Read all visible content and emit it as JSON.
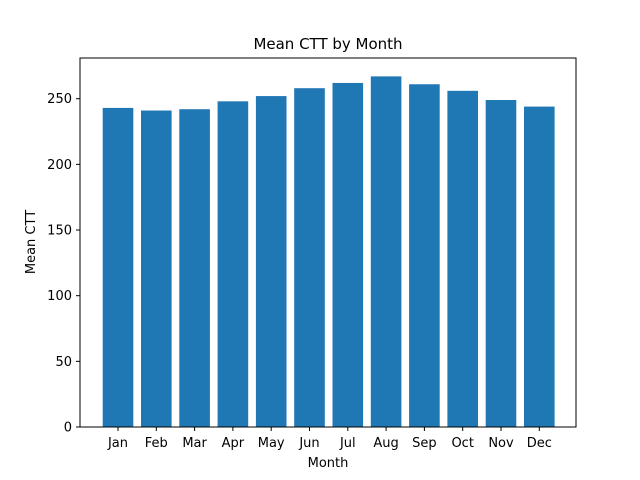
{
  "chart_data": {
    "type": "bar",
    "title": "Mean CTT by Month",
    "xlabel": "Month",
    "ylabel": "Mean CTT",
    "categories": [
      "Jan",
      "Feb",
      "Mar",
      "Apr",
      "May",
      "Jun",
      "Jul",
      "Aug",
      "Sep",
      "Oct",
      "Nov",
      "Dec"
    ],
    "values": [
      243,
      241,
      242,
      248,
      252,
      258,
      262,
      267,
      261,
      256,
      249,
      244
    ],
    "ylim": [
      0,
      281
    ],
    "yticks": [
      0,
      50,
      100,
      150,
      200,
      250
    ],
    "grid": false,
    "bar_color": "#1f77b4"
  }
}
